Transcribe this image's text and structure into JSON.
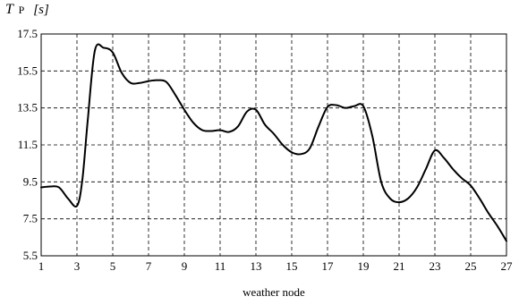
{
  "chart_data": {
    "type": "line",
    "title": "",
    "ylabel": {
      "symbol": "T",
      "subscript": "P",
      "unit": "[s]"
    },
    "xlabel": "weather node",
    "xlim": [
      1,
      27
    ],
    "ylim": [
      5.5,
      17.5
    ],
    "x_ticks": [
      1,
      3,
      5,
      7,
      9,
      11,
      13,
      15,
      17,
      19,
      21,
      23,
      25,
      27
    ],
    "x_tick_labels": [
      "1",
      "3",
      "5",
      "7",
      "9",
      "11",
      "13",
      "15",
      "17",
      "19",
      "21",
      "23",
      "25",
      "27"
    ],
    "y_ticks": [
      5.5,
      7.5,
      9.5,
      11.5,
      13.5,
      15.5,
      17.5
    ],
    "y_tick_labels": [
      "5.5",
      "7.5",
      "9.5",
      "11.5",
      "13.5",
      "15.5",
      "17.5"
    ],
    "grid": "dashed",
    "line_color": "#000000",
    "series": [
      {
        "x": [
          1,
          1.5,
          2,
          2.5,
          3,
          3.3,
          3.6,
          4,
          4.5,
          5,
          5.5,
          6,
          6.5,
          7,
          7.5,
          8,
          8.5,
          9,
          9.5,
          10,
          10.5,
          11,
          11.5,
          12,
          12.5,
          13,
          13.5,
          14,
          14.5,
          15,
          15.5,
          16,
          16.5,
          17,
          17.5,
          18,
          18.5,
          19,
          19.5,
          20,
          20.5,
          21,
          21.5,
          22,
          22.5,
          23,
          23.5,
          24,
          24.5,
          25,
          25.5,
          26,
          26.5,
          27
        ],
        "y": [
          9.2,
          9.25,
          9.2,
          8.6,
          8.2,
          9.6,
          12.8,
          16.6,
          16.75,
          16.5,
          15.4,
          14.85,
          14.85,
          14.95,
          15.0,
          14.9,
          14.2,
          13.4,
          12.7,
          12.3,
          12.25,
          12.3,
          12.2,
          12.5,
          13.3,
          13.4,
          12.6,
          12.1,
          11.5,
          11.1,
          11.0,
          11.3,
          12.5,
          13.55,
          13.65,
          13.5,
          13.6,
          13.6,
          12.0,
          9.5,
          8.6,
          8.4,
          8.6,
          9.2,
          10.2,
          11.2,
          10.8,
          10.2,
          9.7,
          9.3,
          8.6,
          7.8,
          7.1,
          6.3
        ]
      }
    ]
  }
}
